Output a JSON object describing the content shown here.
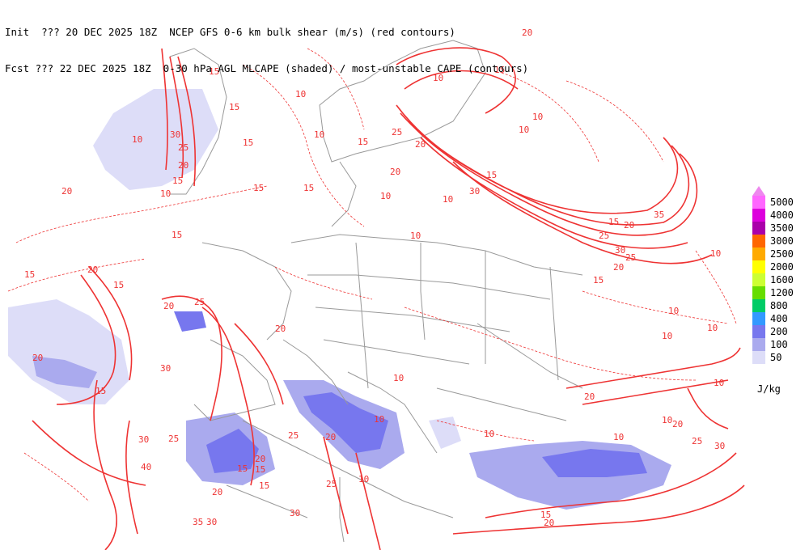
{
  "header": {
    "line1": "Init  ??? 20 DEC 2025 18Z  NCEP GFS 0-6 km bulk shear (m/s) (red contours)",
    "line2": "Fcst ??? 22 DEC 2025 18Z  0-30 hPa AGL MLCAPE (shaded) / most-unstable CAPE (contours)"
  },
  "legend": {
    "units": "J/kg",
    "levels": [
      {
        "label": "5000",
        "color": "#ff66ff"
      },
      {
        "label": "4000",
        "color": "#dd00dd"
      },
      {
        "label": "3500",
        "color": "#aa00aa"
      },
      {
        "label": "3000",
        "color": "#ff6600"
      },
      {
        "label": "2500",
        "color": "#ffaa00"
      },
      {
        "label": "2000",
        "color": "#ffff00"
      },
      {
        "label": "1600",
        "color": "#ccff33"
      },
      {
        "label": "1200",
        "color": "#66dd00"
      },
      {
        "label": "800",
        "color": "#00cc66"
      },
      {
        "label": "400",
        "color": "#3399ff"
      },
      {
        "label": "200",
        "color": "#7777ee"
      },
      {
        "label": "100",
        "color": "#aaaaee"
      },
      {
        "label": "50",
        "color": "#ddddf8"
      }
    ]
  },
  "map": {
    "shear_color": "#ee3333",
    "border_color": "#999999",
    "contour_labels": [
      "10",
      "15",
      "20",
      "25",
      "30",
      "35",
      "40"
    ]
  }
}
